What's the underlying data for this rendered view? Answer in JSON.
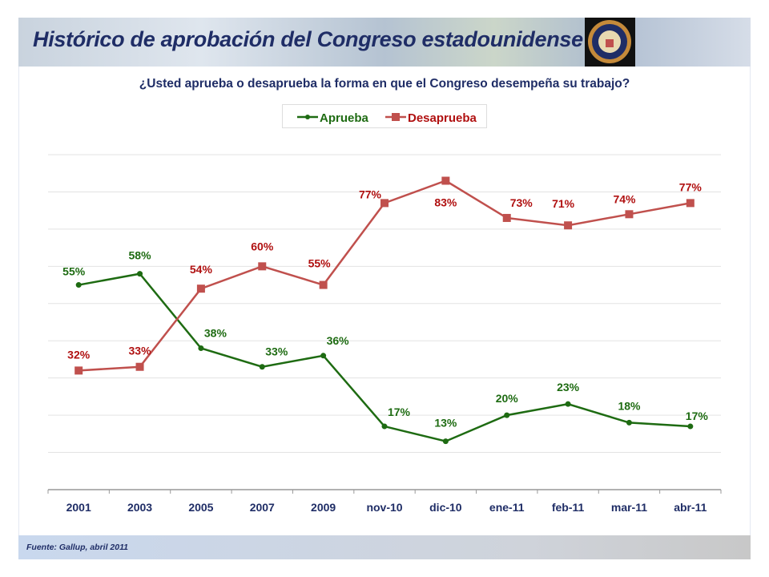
{
  "header": {
    "title": "Histórico de aprobación del Congreso estadounidense",
    "seal_text": "UNITED STATES CONGRESS"
  },
  "footer": {
    "source": "Fuente: Gallup, abril 2011"
  },
  "chart_data": {
    "type": "line",
    "title": "¿Usted aprueba o desaprueba la forma en que el Congreso desempeña su trabajo?",
    "categories": [
      "2001",
      "2003",
      "2005",
      "2007",
      "2009",
      "nov-10",
      "dic-10",
      "ene-11",
      "feb-11",
      "mar-11",
      "abr-11"
    ],
    "ylim": [
      0,
      90
    ],
    "grid": true,
    "legend_position": "top",
    "series": [
      {
        "name": "Aprueba",
        "color": "#1e6b12",
        "marker": "circle",
        "values": [
          55,
          58,
          38,
          33,
          36,
          17,
          13,
          20,
          23,
          18,
          17
        ],
        "labels": [
          "55%",
          "58%",
          "38%",
          "33%",
          "36%",
          "17%",
          "13%",
          "20%",
          "23%",
          "18%",
          "17%"
        ]
      },
      {
        "name": "Desaprueba",
        "color": "#c0504d",
        "label_color": "#b01010",
        "marker": "square",
        "values": [
          32,
          33,
          54,
          60,
          55,
          77,
          83,
          73,
          71,
          74,
          77
        ],
        "labels": [
          "32%",
          "33%",
          "54%",
          "60%",
          "55%",
          "77%",
          "83%",
          "73%",
          "71%",
          "74%",
          "77%"
        ]
      }
    ]
  }
}
